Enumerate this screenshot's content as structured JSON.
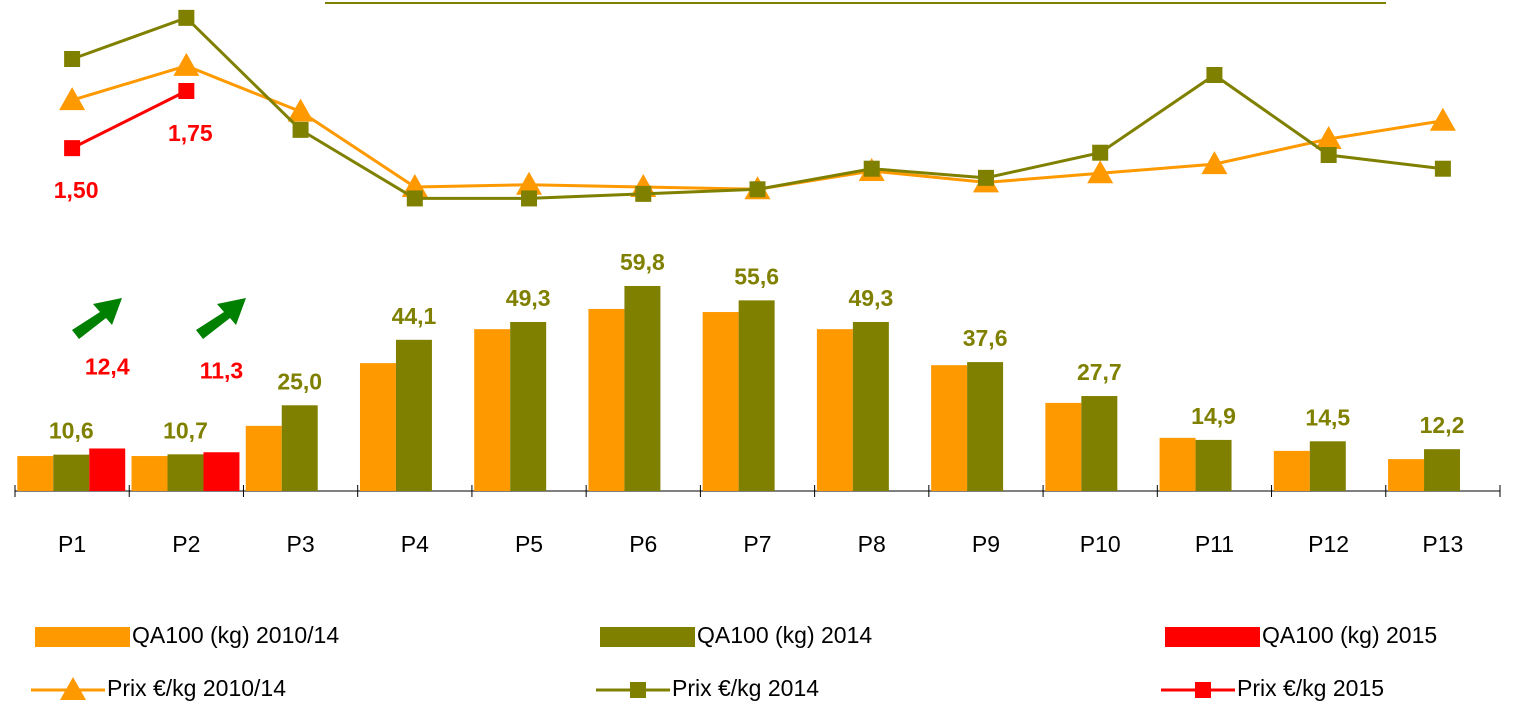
{
  "chart_data": {
    "type": "bar",
    "categories": [
      "P1",
      "P2",
      "P3",
      "P4",
      "P5",
      "P6",
      "P7",
      "P8",
      "P9",
      "P10",
      "P11",
      "P12",
      "P13"
    ],
    "ylim": [
      0,
      140
    ],
    "y2lim": [
      0,
      2.1
    ],
    "series": [
      {
        "name": "QA100 (kg) 2010/14",
        "type": "bar",
        "color": "#FF9900",
        "values": [
          10.2,
          10.2,
          19.0,
          37.3,
          47.2,
          53.1,
          52.2,
          47.2,
          36.7,
          25.7,
          15.5,
          11.7,
          9.3
        ]
      },
      {
        "name": "QA100 (kg) 2014",
        "type": "bar",
        "color": "#808000",
        "values": [
          10.6,
          10.7,
          25.0,
          44.1,
          49.3,
          59.8,
          55.6,
          49.3,
          37.6,
          27.7,
          14.9,
          14.5,
          12.2
        ],
        "value_labels": [
          "10,6",
          "10,7",
          "25,0",
          "44,1",
          "49,3",
          "59,8",
          "55,6",
          "49,3",
          "37,6",
          "27,7",
          "14,9",
          "14,5",
          "12,2"
        ]
      },
      {
        "name": "QA100 (kg) 2015",
        "type": "bar",
        "color": "#FF0000",
        "values": [
          12.4,
          11.3,
          null,
          null,
          null,
          null,
          null,
          null,
          null,
          null,
          null,
          null,
          null
        ],
        "value_labels": [
          "12,4",
          "11,3",
          null,
          null,
          null,
          null,
          null,
          null,
          null,
          null,
          null,
          null,
          null
        ]
      },
      {
        "name": "Prix €/kg 2010/14",
        "type": "line",
        "axis": "y2",
        "marker": "triangle",
        "color": "#FF9900",
        "values": [
          1.71,
          1.86,
          1.66,
          1.33,
          1.34,
          1.33,
          1.32,
          1.4,
          1.35,
          1.39,
          1.43,
          1.54,
          1.62
        ]
      },
      {
        "name": "Prix €/kg 2014",
        "type": "line",
        "axis": "y2",
        "marker": "square",
        "color": "#808000",
        "values": [
          1.89,
          2.07,
          1.58,
          1.28,
          1.28,
          1.3,
          1.32,
          1.41,
          1.37,
          1.48,
          1.82,
          1.47,
          1.41
        ]
      },
      {
        "name": "Prix €/kg 2015",
        "type": "line",
        "axis": "y2",
        "marker": "square",
        "color": "#FF0000",
        "values": [
          1.5,
          1.75,
          null,
          null,
          null,
          null,
          null,
          null,
          null,
          null,
          null,
          null,
          null
        ],
        "value_labels": [
          "1,50",
          "1,75",
          null,
          null,
          null,
          null,
          null,
          null,
          null,
          null,
          null,
          null,
          null
        ]
      }
    ]
  }
}
